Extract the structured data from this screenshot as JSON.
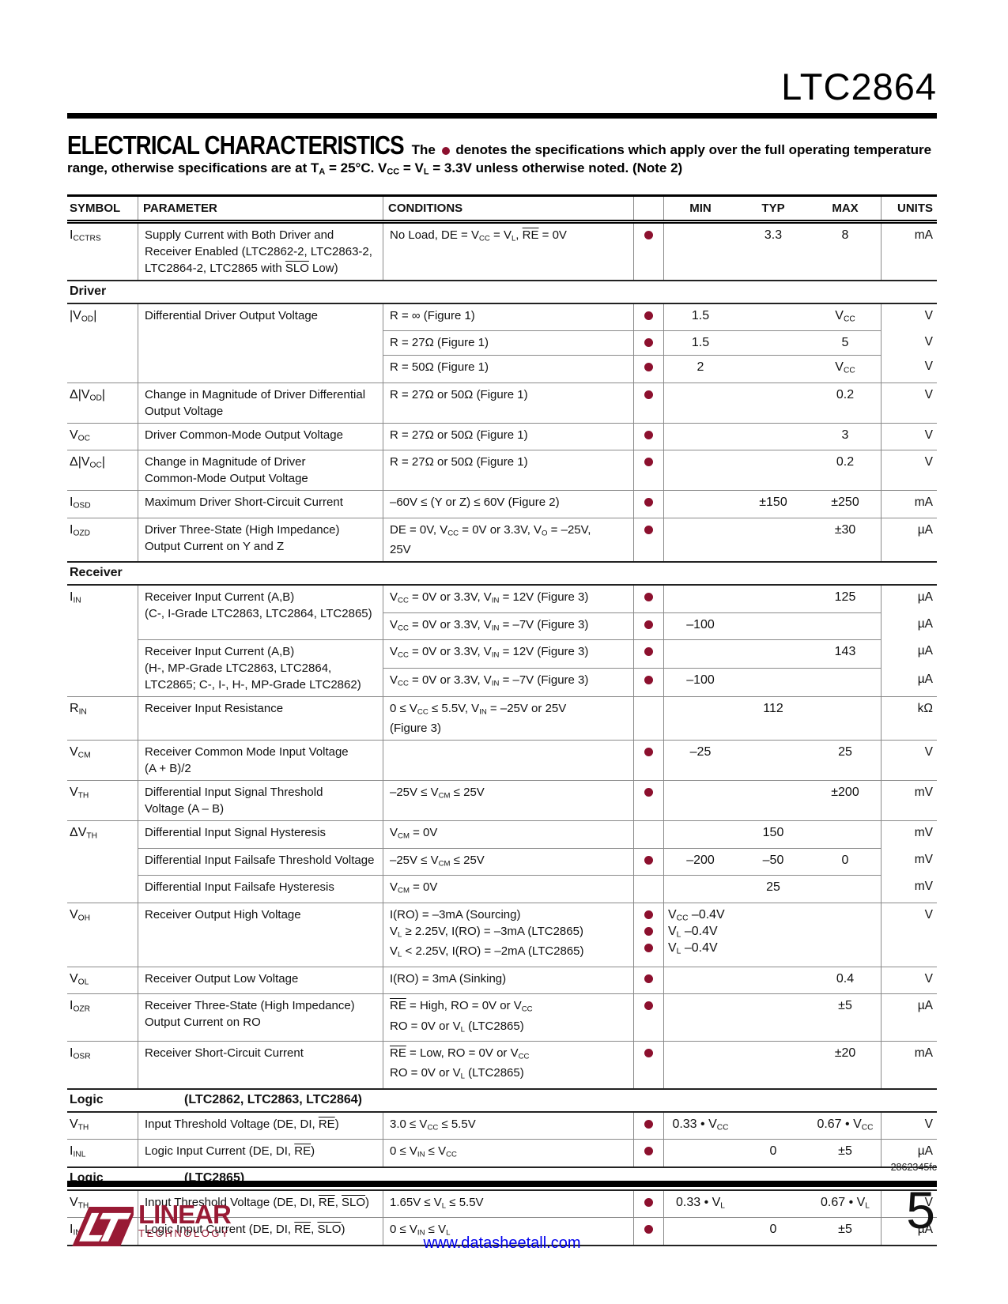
{
  "colors": {
    "accent_dot": "#8C102E",
    "logo": "#981A34",
    "link": "#0000EE"
  },
  "header": {
    "part_number": "LTC2864",
    "title": "ELECTRICAL CHARACTERISTICS",
    "note_pre": "The",
    "note_post": "denotes the specifications which apply over the full operating temperature range, otherwise specifications are at T~A~ = 25°C. V~CC~ = V~L~ = 3.3V unless otherwise noted. (Note 2)"
  },
  "table": {
    "headers": [
      "SYMBOL",
      "PARAMETER",
      "CONDITIONS",
      "",
      "MIN",
      "TYP",
      "MAX",
      "UNITS"
    ],
    "sections": [
      {
        "title": "",
        "subtitle": "",
        "rows": [
          {
            "symbol": "I~CCTRS~",
            "parameter": "Supply Current with Both Driver and\nReceiver Enabled (LTC2862-2, LTC2863-2,\nLTC2864-2, LTC2865 with ^SLO^ Low)",
            "divider": "none",
            "subrows": [
              {
                "cond": "No Load, DE = V~CC~ = V~L~, ^RE^ = 0V",
                "dot": [
                  true
                ],
                "min": "",
                "typ": "3.3",
                "max": "8",
                "units": "mA"
              }
            ]
          }
        ]
      },
      {
        "title": "Driver",
        "subtitle": "",
        "rows": [
          {
            "symbol": "|V~OD~|",
            "parameter": "Differential Driver Output Voltage",
            "divider": "none",
            "subrows": [
              {
                "cond": "R = ∞ (Figure 1)",
                "dot": [
                  true
                ],
                "min": "1.5",
                "typ": "",
                "max": "V~CC~",
                "units": "V"
              },
              {
                "cond": "R = 27Ω (Figure 1)",
                "dot": [
                  true
                ],
                "min": "1.5",
                "typ": "",
                "max": "5",
                "units": "V"
              },
              {
                "cond": "R = 50Ω (Figure 1)",
                "dot": [
                  true
                ],
                "min": "2",
                "typ": "",
                "max": "V~CC~",
                "units": "V"
              }
            ]
          },
          {
            "symbol": "Δ|V~OD~|",
            "parameter": "Change in Magnitude of Driver Differential\nOutput Voltage",
            "divider": "full",
            "subrows": [
              {
                "cond": "R = 27Ω or 50Ω (Figure 1)",
                "dot": [
                  true
                ],
                "min": "",
                "typ": "",
                "max": "0.2",
                "units": "V"
              }
            ]
          },
          {
            "symbol": "V~OC~",
            "parameter": "Driver Common-Mode Output Voltage",
            "divider": "full",
            "subrows": [
              {
                "cond": "R = 27Ω or 50Ω (Figure 1)",
                "dot": [
                  true
                ],
                "min": "",
                "typ": "",
                "max": "3",
                "units": "V"
              }
            ]
          },
          {
            "symbol": "Δ|V~OC~|",
            "parameter": "Change in Magnitude of Driver\nCommon-Mode Output Voltage",
            "divider": "full",
            "subrows": [
              {
                "cond": "R = 27Ω or 50Ω (Figure 1)",
                "dot": [
                  true
                ],
                "min": "",
                "typ": "",
                "max": "0.2",
                "units": "V"
              }
            ]
          },
          {
            "symbol": "I~OSD~",
            "parameter": "Maximum Driver Short-Circuit Current",
            "divider": "full",
            "subrows": [
              {
                "cond": "–60V ≤ (Y or Z) ≤ 60V (Figure 2)",
                "dot": [
                  true
                ],
                "min": "",
                "typ": "±150",
                "max": "±250",
                "units": "mA"
              }
            ]
          },
          {
            "symbol": "I~OZD~",
            "parameter": "Driver Three-State (High Impedance)\nOutput Current on Y and Z",
            "divider": "full",
            "subrows": [
              {
                "cond": "DE = 0V, V~CC~ = 0V or 3.3V, V~O~ = –25V,\n25V",
                "dot": [
                  true
                ],
                "min": "",
                "typ": "",
                "max": "±30",
                "units": "µA"
              }
            ]
          }
        ]
      },
      {
        "title": "Receiver",
        "subtitle": "",
        "rows": [
          {
            "symbol": "I~IN~",
            "parameter": "Receiver Input Current (A,B)\n(C-, I-Grade LTC2863, LTC2864, LTC2865)",
            "divider": "none",
            "subrows": [
              {
                "cond": "V~CC~ = 0V or 3.3V, V~IN~ = 12V (Figure 3)",
                "dot": [
                  true
                ],
                "min": "",
                "typ": "",
                "max": "125",
                "units": "µA"
              },
              {
                "cond": "V~CC~ = 0V or 3.3V, V~IN~ = –7V (Figure 3)",
                "dot": [
                  true
                ],
                "min": "–100",
                "typ": "",
                "max": "",
                "units": "µA"
              }
            ]
          },
          {
            "symbol": "",
            "parameter": "Receiver Input Current (A,B)\n(H-, MP-Grade LTC2863, LTC2864,\nLTC2865; C-, I-, H-, MP-Grade LTC2862)",
            "divider": "param",
            "subrows": [
              {
                "cond": "V~CC~ = 0V or 3.3V, V~IN~ = 12V (Figure 3)",
                "dot": [
                  true
                ],
                "min": "",
                "typ": "",
                "max": "143",
                "units": "µA"
              },
              {
                "cond": "V~CC~ = 0V or 3.3V, V~IN~ = –7V (Figure 3)",
                "dot": [
                  true
                ],
                "min": "–100",
                "typ": "",
                "max": "",
                "units": "µA"
              }
            ]
          },
          {
            "symbol": "R~IN~",
            "parameter": "Receiver Input Resistance",
            "divider": "full",
            "subrows": [
              {
                "cond": "0 ≤ V~CC~ ≤ 5.5V, V~IN~ = –25V or 25V\n(Figure 3)",
                "dot": [],
                "min": "",
                "typ": "112",
                "max": "",
                "units": "kΩ"
              }
            ]
          },
          {
            "symbol": "V~CM~",
            "parameter": "Receiver Common Mode Input Voltage\n(A + B)/2",
            "divider": "full",
            "subrows": [
              {
                "cond": "",
                "dot": [
                  true
                ],
                "min": "–25",
                "typ": "",
                "max": "25",
                "units": "V"
              }
            ]
          },
          {
            "symbol": "V~TH~",
            "parameter": "Differential Input Signal Threshold\nVoltage (A – B)",
            "divider": "full",
            "subrows": [
              {
                "cond": "–25V ≤ V~CM~ ≤ 25V",
                "dot": [
                  true
                ],
                "min": "",
                "typ": "",
                "max": "±200",
                "units": "mV"
              }
            ]
          },
          {
            "symbol": "ΔV~TH~",
            "parameter": "Differential Input Signal Hysteresis",
            "divider": "full",
            "subrows": [
              {
                "cond": "V~CM~ = 0V",
                "dot": [],
                "min": "",
                "typ": "150",
                "max": "",
                "units": "mV"
              }
            ]
          },
          {
            "symbol": "",
            "parameter": "Differential Input Failsafe Threshold Voltage",
            "divider": "param",
            "subrows": [
              {
                "cond": "–25V ≤ V~CM~ ≤ 25V",
                "dot": [
                  true
                ],
                "min": "–200",
                "typ": "–50",
                "max": "0",
                "units": "mV"
              }
            ]
          },
          {
            "symbol": "",
            "parameter": "Differential Input Failsafe Hysteresis",
            "divider": "param",
            "subrows": [
              {
                "cond": "V~CM~ = 0V",
                "dot": [],
                "min": "",
                "typ": "25",
                "max": "",
                "units": "mV"
              }
            ]
          },
          {
            "symbol": "V~OH~",
            "parameter": "Receiver Output High Voltage",
            "divider": "full",
            "subrows": [
              {
                "cond": "I(RO) = –3mA (Sourcing)\nV~L~ ≥ 2.25V, I(RO) = –3mA (LTC2865)\nV~L~ < 2.25V, I(RO) = –2mA (LTC2865)",
                "dot": [
                  true,
                  true,
                  true
                ],
                "min": [
                  "V~CC~ –0.4V",
                  "V~L~ –0.4V",
                  "V~L~ –0.4V"
                ],
                "typ": "",
                "max": "",
                "units": "V"
              }
            ]
          },
          {
            "symbol": "V~OL~",
            "parameter": "Receiver Output Low Voltage",
            "divider": "full",
            "subrows": [
              {
                "cond": "I(RO) = 3mA (Sinking)",
                "dot": [
                  true
                ],
                "min": "",
                "typ": "",
                "max": "0.4",
                "units": "V"
              }
            ]
          },
          {
            "symbol": "I~OZR~",
            "parameter": "Receiver Three-State (High Impedance)\nOutput Current on RO",
            "divider": "full",
            "subrows": [
              {
                "cond": "^RE^ = High, RO = 0V or V~CC~\nRO = 0V or V~L~ (LTC2865)",
                "dot": [
                  true
                ],
                "min": "",
                "typ": "",
                "max": "±5",
                "units": "µA"
              }
            ]
          },
          {
            "symbol": "I~OSR~",
            "parameter": "Receiver Short-Circuit Current",
            "divider": "full",
            "subrows": [
              {
                "cond": "^RE^ = Low, RO = 0V or V~CC~\nRO = 0V or V~L~ (LTC2865)",
                "dot": [
                  true
                ],
                "min": "",
                "typ": "",
                "max": "±20",
                "units": "mA"
              }
            ]
          }
        ]
      },
      {
        "title": "Logic",
        "subtitle": "(LTC2862, LTC2863, LTC2864)",
        "rows": [
          {
            "symbol": "V~TH~",
            "parameter": "Input Threshold Voltage (DE, DI, ^RE^)",
            "divider": "none",
            "subrows": [
              {
                "cond": "3.0 ≤ V~CC~ ≤ 5.5V",
                "dot": [
                  true
                ],
                "min": "0.33 • V~CC~",
                "typ": "",
                "max": "0.67 • V~CC~",
                "units": "V"
              }
            ]
          },
          {
            "symbol": "I~INL~",
            "parameter": "Logic Input Current (DE, DI, ^RE^)",
            "divider": "full",
            "subrows": [
              {
                "cond": "0 ≤ V~IN~ ≤ V~CC~",
                "dot": [
                  true
                ],
                "min": "",
                "typ": "0",
                "max": "±5",
                "units": "µA"
              }
            ]
          }
        ]
      },
      {
        "title": "Logic",
        "subtitle": "(LTC2865)",
        "rows": [
          {
            "symbol": "V~TH~",
            "parameter": "Input Threshold Voltage (DE, DI, ^RE^, ^SLO^)",
            "divider": "none",
            "subrows": [
              {
                "cond": "1.65V ≤ V~L~ ≤ 5.5V",
                "dot": [
                  true
                ],
                "min": "0.33 • V~L~",
                "typ": "",
                "max": "0.67 • V~L~",
                "units": "V"
              }
            ]
          },
          {
            "symbol": "I~INL~",
            "parameter": "Logic Input Current (DE, DI, ^RE^, ^SLO^)",
            "divider": "full",
            "subrows": [
              {
                "cond": "0 ≤ V~IN~ ≤ V~L~",
                "dot": [
                  true
                ],
                "min": "",
                "typ": "0",
                "max": "±5",
                "units": "µA"
              }
            ]
          }
        ]
      }
    ]
  },
  "footer": {
    "doc_code": "2862345fc",
    "site_link": "www.datasheetall.com",
    "page_number": "5",
    "logo_brand": "LINEAR",
    "logo_sub": "TECHNOLOGY"
  }
}
